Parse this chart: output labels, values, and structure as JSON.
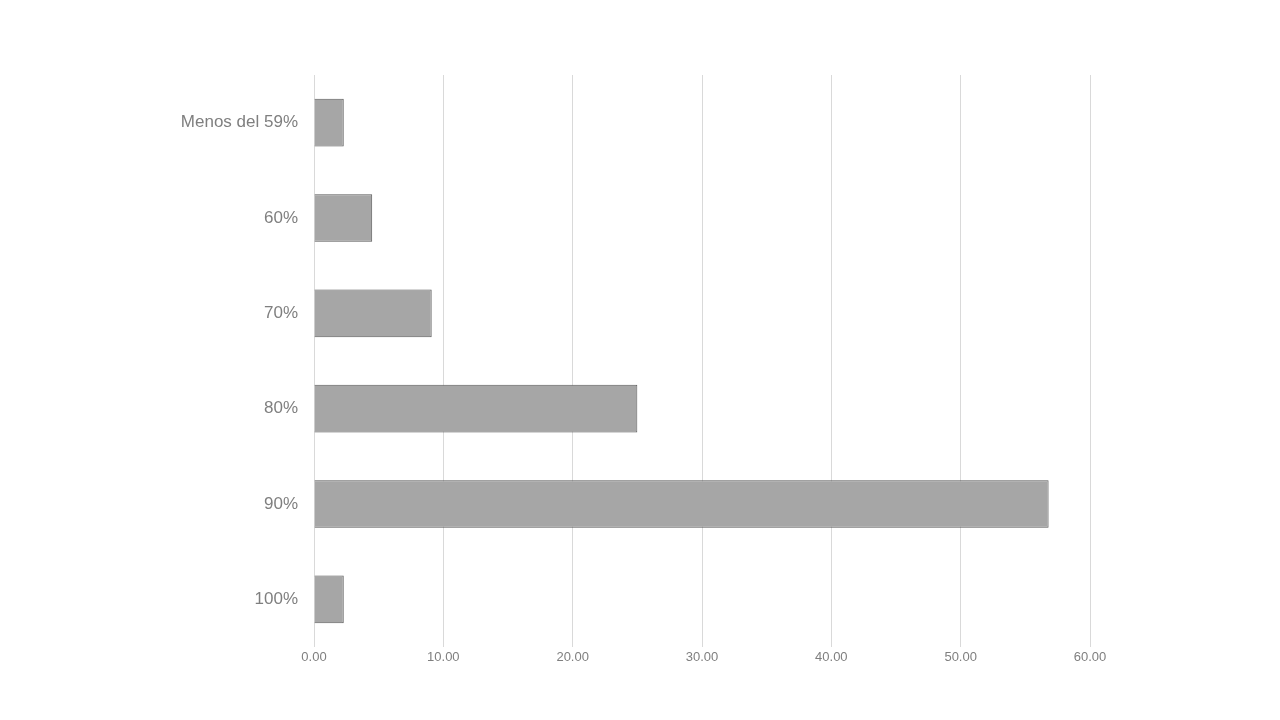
{
  "chart_data": {
    "type": "bar",
    "orientation": "horizontal",
    "categories": [
      "Menos del 59%",
      "60%",
      "70%",
      "80%",
      "90%",
      "100%"
    ],
    "values": [
      2.3,
      4.5,
      9.1,
      25.0,
      56.8,
      2.3
    ],
    "color": "#a6a6a6",
    "xlim": [
      0,
      60
    ],
    "xticks": [
      {
        "value": 0,
        "label": "0.00"
      },
      {
        "value": 10,
        "label": "10.00"
      },
      {
        "value": 20,
        "label": "20.00"
      },
      {
        "value": 30,
        "label": "30.00"
      },
      {
        "value": 40,
        "label": "40.00"
      },
      {
        "value": 50,
        "label": "50.00"
      },
      {
        "value": 60,
        "label": "60.00"
      }
    ],
    "grid": "x",
    "legend": false
  }
}
